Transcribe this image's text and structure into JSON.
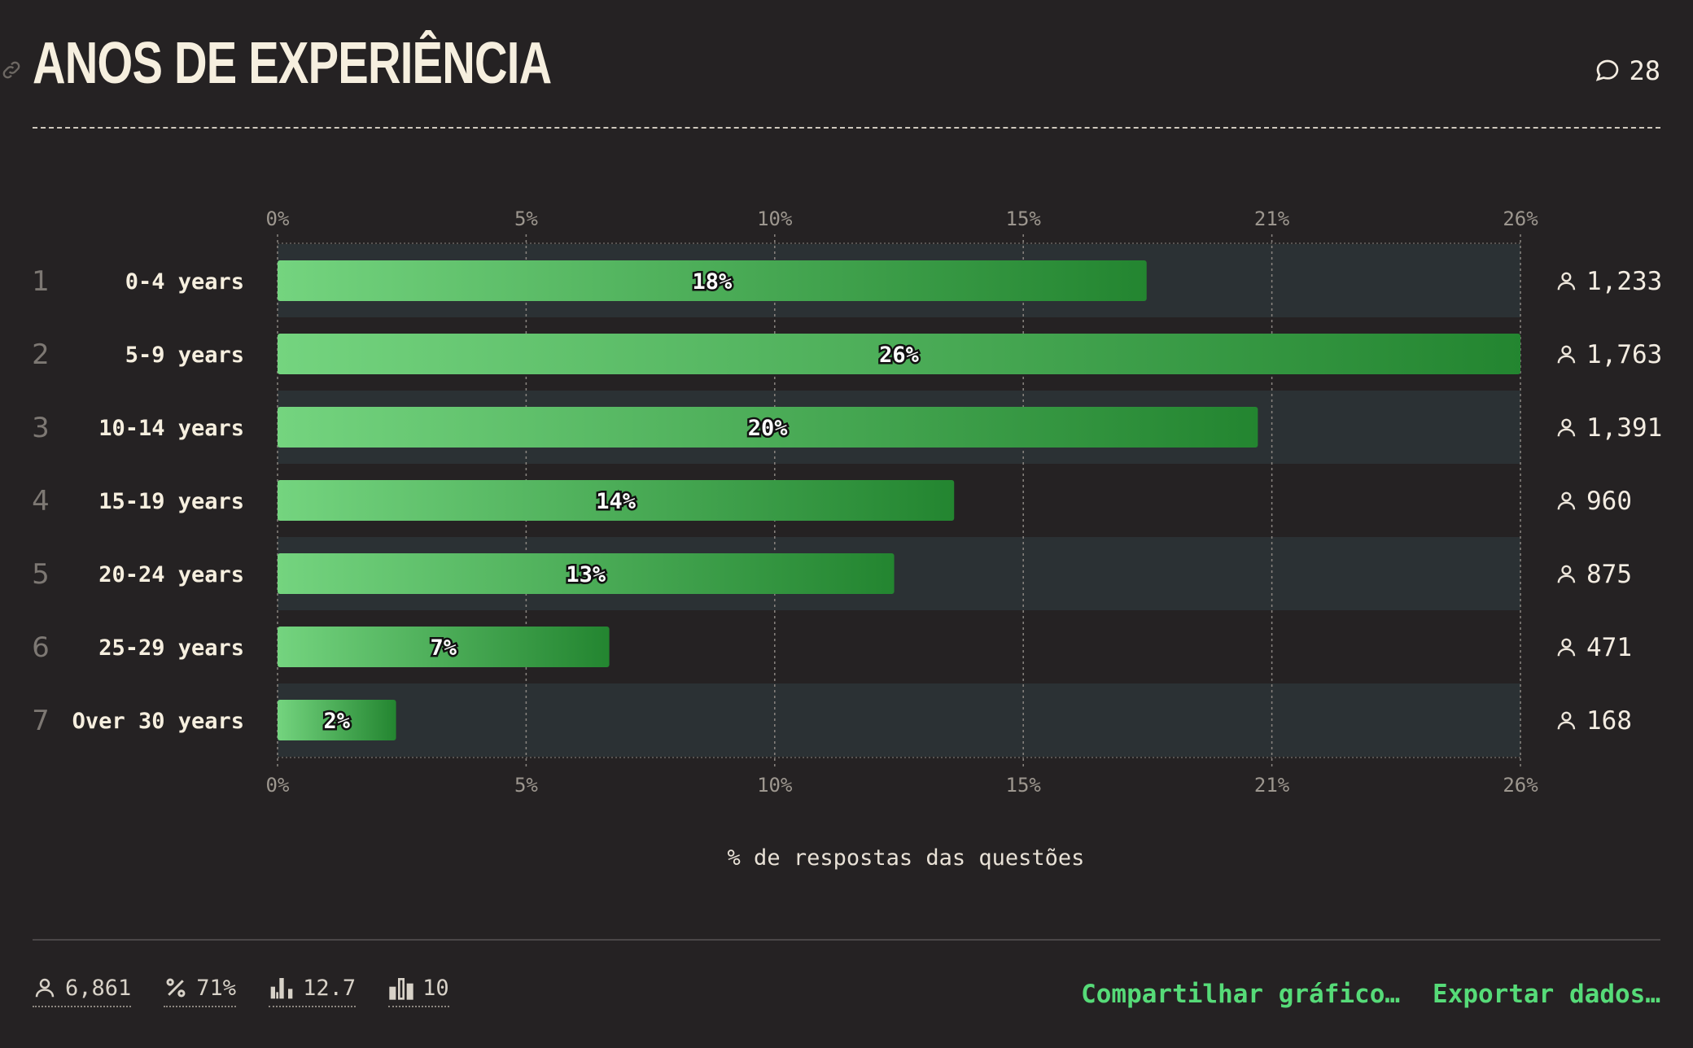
{
  "header": {
    "title": "ANOS DE EXPERIÊNCIA",
    "comment_count": "28"
  },
  "chart_data": {
    "type": "bar",
    "orientation": "horizontal",
    "title": "ANOS DE EXPERIÊNCIA",
    "xlabel": "% de respostas das questões",
    "xlim": [
      0,
      25.7
    ],
    "x_tick_values": [
      0,
      5.14,
      10.28,
      15.42,
      20.56,
      25.7
    ],
    "x_ticks": [
      "0%",
      "5%",
      "10%",
      "15%",
      "21%",
      "26%"
    ],
    "ranks": [
      "1",
      "2",
      "3",
      "4",
      "5",
      "6",
      "7"
    ],
    "categories": [
      "0-4 years",
      "5-9 years",
      "10-14 years",
      "15-19 years",
      "20-24 years",
      "25-29 years",
      "Over 30 years"
    ],
    "values": [
      18,
      26,
      20,
      14,
      13,
      7,
      2
    ],
    "value_labels": [
      "18%",
      "26%",
      "20%",
      "14%",
      "13%",
      "7%",
      "2%"
    ],
    "bar_values": [
      17.97,
      25.7,
      20.27,
      13.99,
      12.75,
      6.86,
      2.45
    ],
    "counts": [
      "1,233",
      "1,763",
      "1,391",
      "960",
      "875",
      "471",
      "168"
    ],
    "grid": true,
    "colors": {
      "bar_start": "#74d47f",
      "bar_end": "#238530",
      "band": "#2b3134",
      "grid": "#8a8580",
      "tick_text": "#9d978f"
    }
  },
  "footer": {
    "stats": [
      {
        "icon": "person-icon",
        "value": "6,861"
      },
      {
        "icon": "percent-icon",
        "value": "71%"
      },
      {
        "icon": "median-chart-icon",
        "value": "12.7"
      },
      {
        "icon": "bars-icon",
        "value": "10"
      }
    ],
    "share_label": "Compartilhar gráfico…",
    "export_label": "Exportar dados…"
  },
  "colors": {
    "background": "#252223",
    "accent": "#56db78",
    "title": "#f6efdf"
  }
}
